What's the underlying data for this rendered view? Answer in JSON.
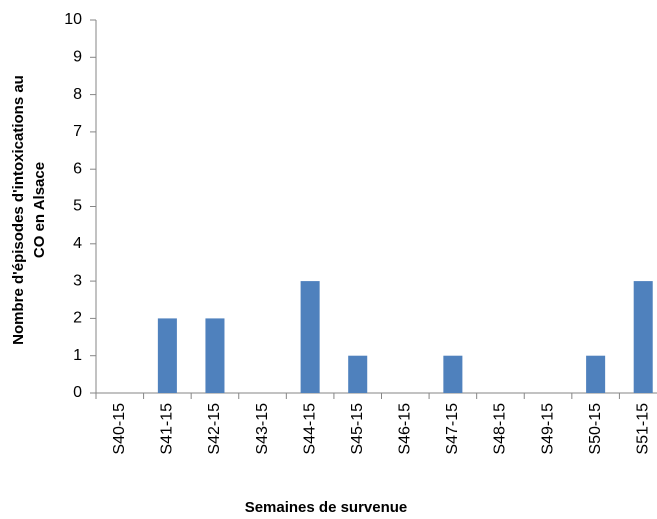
{
  "chart_data": {
    "type": "bar",
    "ylabel": [
      "Nombre d'épisodes d'intoxications au",
      "CO en Alsace"
    ],
    "xlabel": "Semaines de survenue",
    "categories": [
      "S40-15",
      "S41-15",
      "S42-15",
      "S43-15",
      "S44-15",
      "S45-15",
      "S46-15",
      "S47-15",
      "S48-15",
      "S49-15",
      "S50-15",
      "S51-15"
    ],
    "values": [
      0,
      2,
      2,
      0,
      3,
      1,
      0,
      1,
      0,
      0,
      1,
      3
    ],
    "color": "#4f81bd",
    "ylim": [
      0,
      10
    ],
    "yticks": [
      0,
      1,
      2,
      3,
      4,
      5,
      6,
      7,
      8,
      9,
      10
    ],
    "grid": false
  }
}
